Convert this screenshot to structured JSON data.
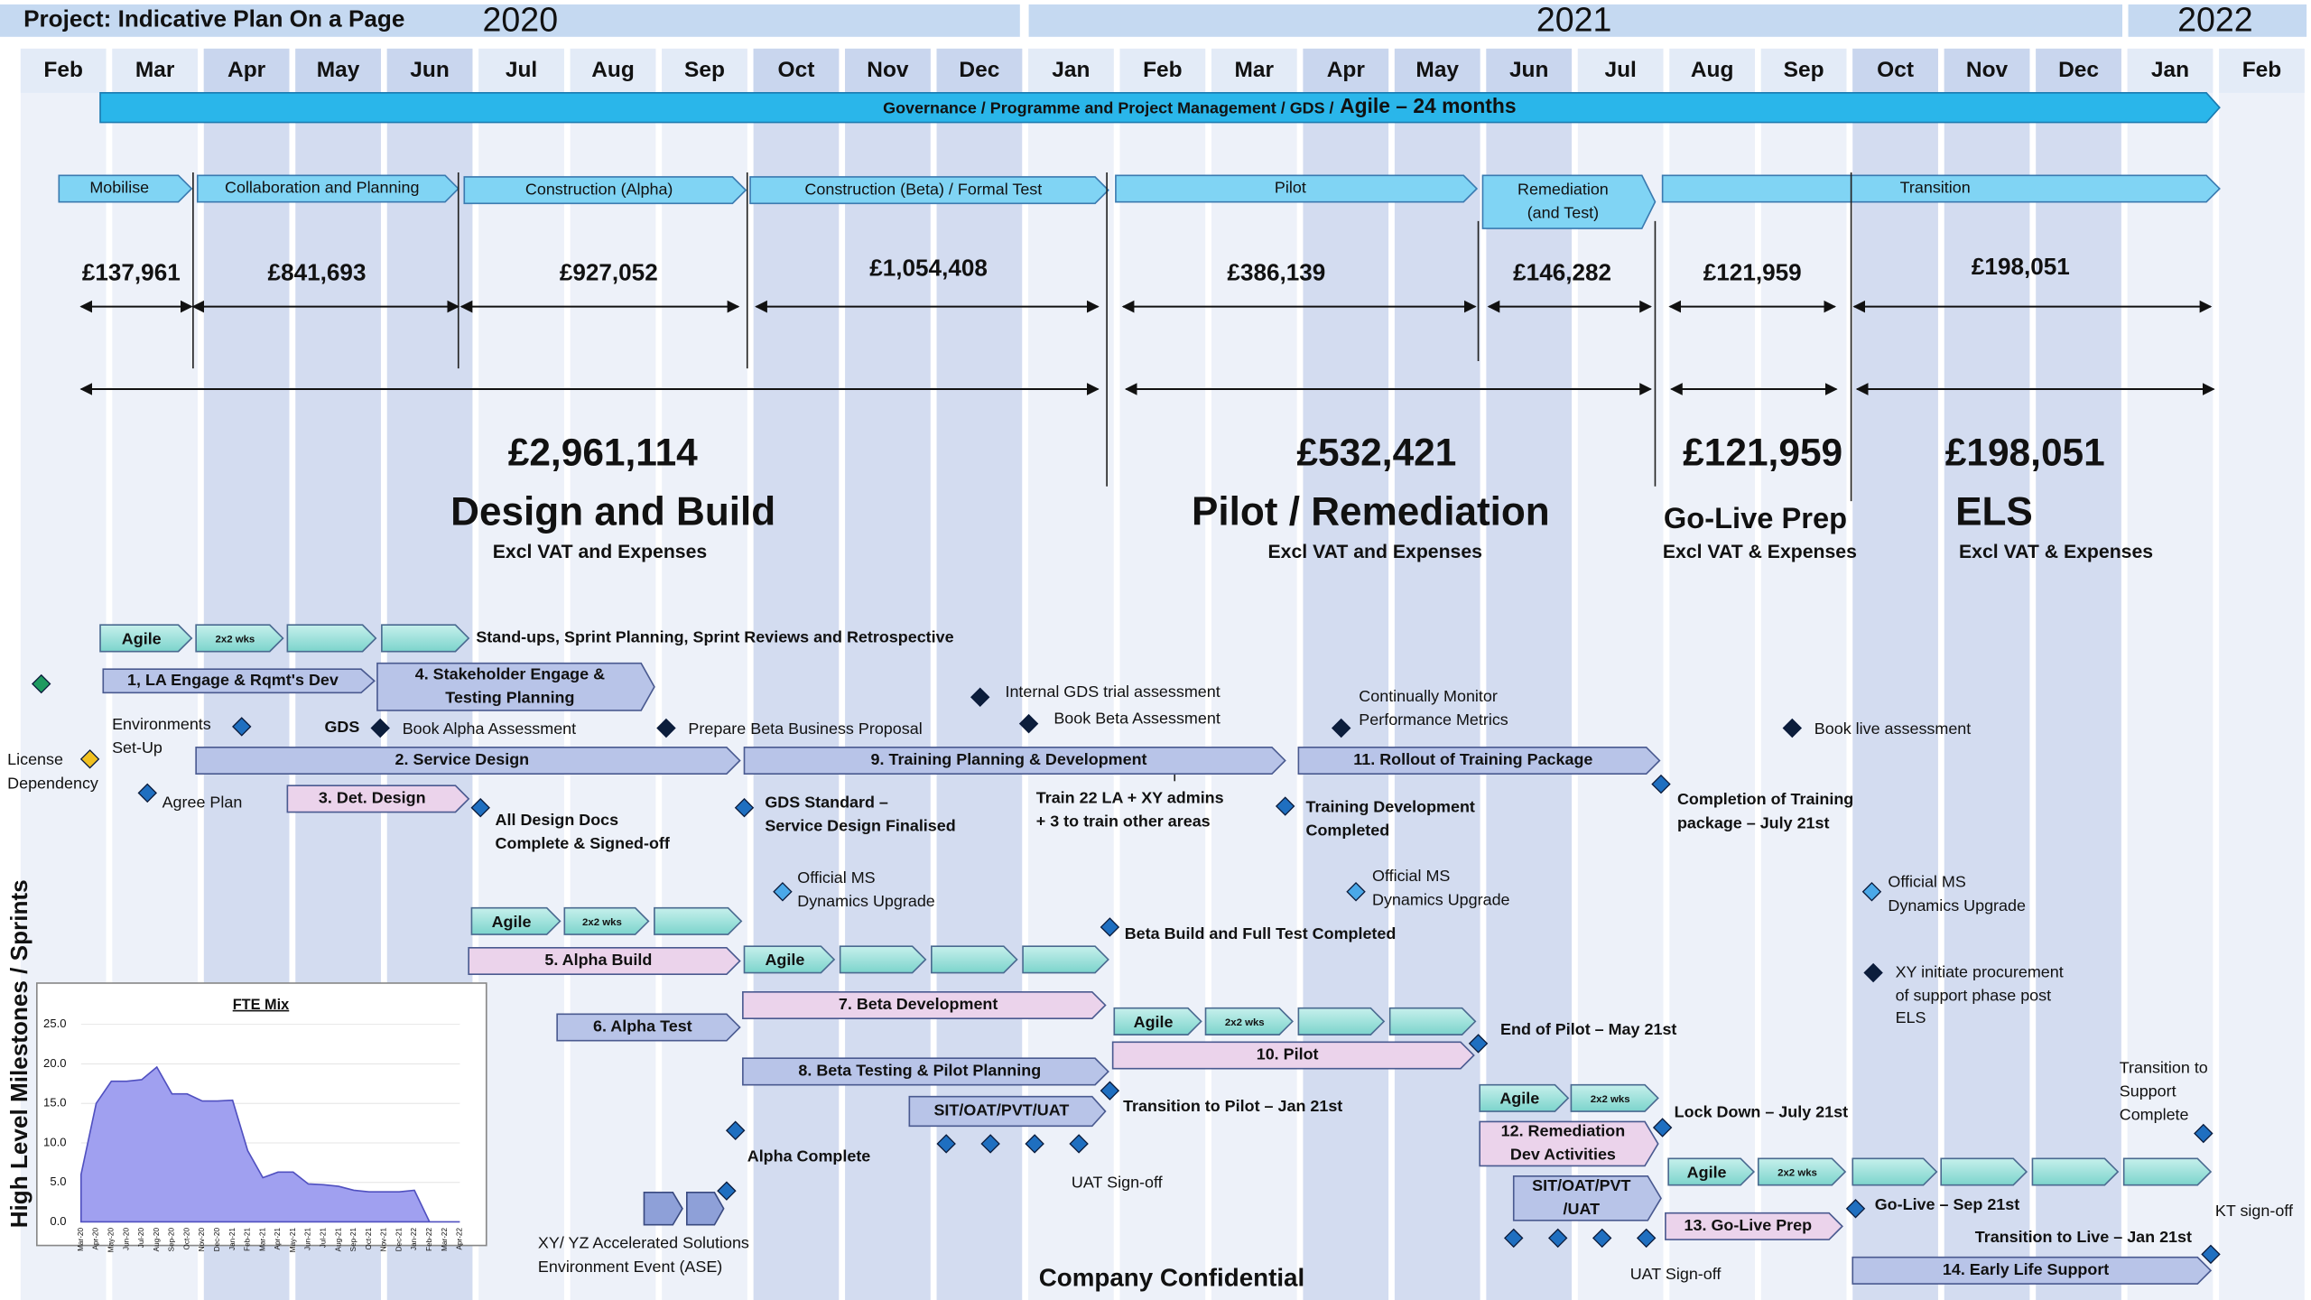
{
  "header": {
    "title": "Project: Indicative Plan On a Page",
    "years": [
      "2020",
      "2021",
      "2022"
    ],
    "months": [
      "Feb",
      "Mar",
      "Apr",
      "May",
      "Jun",
      "Jul",
      "Aug",
      "Sep",
      "Oct",
      "Nov",
      "Dec",
      "Jan",
      "Feb",
      "Mar",
      "Apr",
      "May",
      "Jun",
      "Jul",
      "Aug",
      "Sep",
      "Oct",
      "Nov",
      "Dec",
      "Jan",
      "Feb"
    ],
    "side_label": "High  Level  Milestones / Sprints",
    "footer": "Company Confidential"
  },
  "governance": {
    "text": "Governance / Programme and Project Management / GDS /",
    "highlight": "Agile – 24 months"
  },
  "phases": [
    {
      "label": [
        "Mobilise"
      ]
    },
    {
      "label": [
        "Collaboration and Planning"
      ]
    },
    {
      "label": [
        "Construction (Alpha)"
      ]
    },
    {
      "label": [
        "Construction (Beta) / Formal Test"
      ]
    },
    {
      "label": [
        "Pilot"
      ]
    },
    {
      "label": [
        "Remediation",
        "(and Test)"
      ]
    },
    {
      "label": [
        "Transition"
      ]
    }
  ],
  "costs": [
    "£137,961",
    "£841,693",
    "£927,052",
    "£1,054,408",
    "£386,139",
    "£146,282",
    "£121,959",
    "£198,051"
  ],
  "totals": [
    {
      "amount": "£2,961,114",
      "title": "Design and Build",
      "note": "Excl VAT and Expenses"
    },
    {
      "amount": "£532,421",
      "title": "Pilot / Remediation",
      "note": "Excl VAT and Expenses"
    },
    {
      "amount": "£121,959",
      "title": "Go-Live Prep",
      "note": "Excl VAT & Expenses"
    },
    {
      "amount": "£198,051",
      "title": "ELS",
      "note": "Excl VAT & Expenses"
    }
  ],
  "sprint_note": "Stand-ups, Sprint Planning, Sprint Reviews and Retrospective",
  "sprints": [
    "Agile",
    "2x2 wks",
    "Agile",
    "2x2 wks",
    "Agile",
    "Agile",
    "2x2 wks",
    "Agile",
    "2x2 wks",
    "Agile",
    "2x2 wks"
  ],
  "tasks": [
    {
      "label": [
        "1,  LA Engage & Rqmt's Dev"
      ]
    },
    {
      "label": [
        "4.  Stakeholder Engage &",
        "Testing Planning"
      ]
    },
    {
      "label": [
        "2.  Service Design"
      ]
    },
    {
      "label": [
        "9.  Training Planning & Development"
      ]
    },
    {
      "label": [
        "11.  Rollout of Training Package"
      ]
    },
    {
      "label": [
        "3.  Det. Design"
      ]
    },
    {
      "label": [
        "5.  Alpha Build"
      ]
    },
    {
      "label": [
        "6.  Alpha Test"
      ]
    },
    {
      "label": [
        "7.  Beta Development"
      ]
    },
    {
      "label": [
        "8.  Beta Testing & Pilot Planning"
      ]
    },
    {
      "label": [
        "10.  Pilot"
      ]
    },
    {
      "label": [
        "SIT/OAT/PVT/UAT"
      ]
    },
    {
      "label": [
        "12. Remediation",
        "Dev Activities"
      ]
    },
    {
      "label": [
        "SIT/OAT/PVT",
        "/UAT"
      ]
    },
    {
      "label": [
        "13.  Go-Live Prep"
      ]
    },
    {
      "label": [
        "14.  Early Life Support"
      ]
    }
  ],
  "milestones": [
    {
      "text": [
        "License",
        "Dependency"
      ]
    },
    {
      "text": [
        "Environments",
        "Set-Up"
      ]
    },
    {
      "text": [
        "GDS",
        "Book Alpha Assessment"
      ]
    },
    {
      "text": [
        "Prepare Beta Business Proposal"
      ]
    },
    {
      "text": [
        "Internal GDS trial assessment"
      ]
    },
    {
      "text": [
        "Book Beta Assessment"
      ]
    },
    {
      "text": [
        "Continually Monitor",
        "Performance Metrics"
      ]
    },
    {
      "text": [
        "Book live assessment"
      ]
    },
    {
      "text": [
        "Agree Plan"
      ]
    },
    {
      "text": [
        "All Design Docs",
        "Complete & Signed-off"
      ]
    },
    {
      "text": [
        "GDS Standard –",
        "Service Design Finalised"
      ]
    },
    {
      "text": [
        "Train 22 LA + XY admins",
        "+ 3 to train other areas"
      ]
    },
    {
      "text": [
        "Training Development",
        "Completed"
      ]
    },
    {
      "text": [
        "Completion of Training",
        "package – July 21st"
      ]
    },
    {
      "text": [
        "Official MS",
        "Dynamics Upgrade"
      ]
    },
    {
      "text": [
        "Official MS",
        "Dynamics Upgrade"
      ]
    },
    {
      "text": [
        "Official MS",
        "Dynamics Upgrade"
      ]
    },
    {
      "text": [
        "Beta Build and Full Test Completed"
      ]
    },
    {
      "text": [
        "XY initiate procurement",
        "of support phase post",
        "ELS"
      ]
    },
    {
      "text": [
        "End of Pilot – May 21st"
      ]
    },
    {
      "text": [
        "Transition to Pilot – Jan 21st"
      ]
    },
    {
      "text": [
        "Lock Down – July 21st"
      ]
    },
    {
      "text": [
        "Transition to",
        "Support",
        "Complete"
      ]
    },
    {
      "text": [
        "Alpha Complete"
      ]
    },
    {
      "text": [
        "XY/ YZ Accelerated Solutions",
        "Environment Event (ASE)"
      ]
    },
    {
      "text": [
        "UAT Sign-off"
      ]
    },
    {
      "text": [
        "UAT Sign-off"
      ]
    },
    {
      "text": [
        "Go-Live – Sep 21st"
      ]
    },
    {
      "text": [
        "KT sign-off"
      ]
    },
    {
      "text": [
        "Transition to Live – Jan 21st"
      ]
    }
  ],
  "fte_chart": {
    "type": "area",
    "title": "FTE Mix",
    "categories": [
      "Mar-20",
      "Apr-20",
      "May-20",
      "Jun-20",
      "Jul-20",
      "Aug-20",
      "Sep-20",
      "Oct-20",
      "Nov-20",
      "Dec-20",
      "Jan-21",
      "Feb-21",
      "Mar-21",
      "Apr-21",
      "May-21",
      "Jun-21",
      "Jul-21",
      "Aug-21",
      "Sep-21",
      "Oct-21",
      "Nov-21",
      "Dec-21",
      "Jan-22",
      "Feb-22",
      "Mar-22",
      "Apr-22"
    ],
    "values": [
      6,
      15,
      17.8,
      17.8,
      18,
      19.6,
      16.2,
      16.2,
      15.3,
      15.3,
      15.4,
      9,
      5.6,
      6.3,
      6.3,
      4.8,
      4.7,
      4.5,
      4,
      3.8,
      3.8,
      3.8,
      4,
      0,
      0,
      0
    ],
    "color": "#a0a0f0",
    "ylim": [
      0,
      25
    ],
    "yticks": [
      {
        "value": 0,
        "label": "0.0"
      },
      {
        "value": 5,
        "label": "5.0"
      },
      {
        "value": 10,
        "label": "10.0"
      },
      {
        "value": 15,
        "label": "15.0"
      },
      {
        "value": 20,
        "label": "20.0"
      },
      {
        "value": 25,
        "label": "25.0"
      }
    ]
  }
}
